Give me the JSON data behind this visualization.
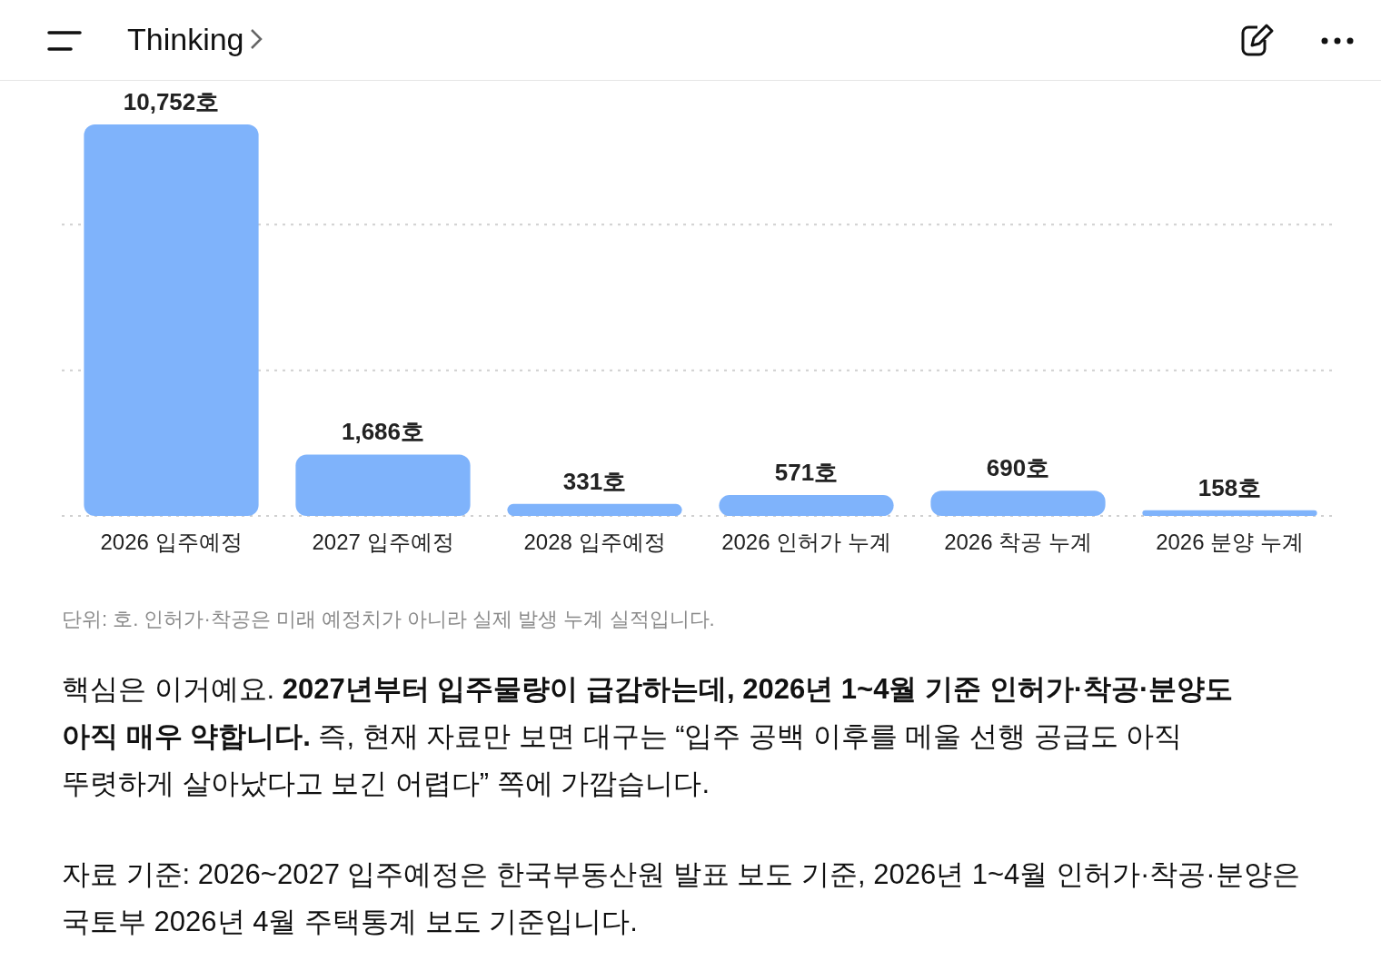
{
  "chart_data": {
    "type": "bar",
    "categories": [
      "2026 입주예정",
      "2027 입주예정",
      "2028 입주예정",
      "2026 인허가 누계",
      "2026 착공 누계",
      "2026 분양 누계"
    ],
    "values": [
      10752,
      1686,
      331,
      571,
      690,
      158
    ],
    "value_labels": [
      "10,752호",
      "1,686호",
      "331호",
      "571호",
      "690호",
      "158호"
    ],
    "color": "#7fb3fb",
    "ylim": [
      0,
      10752
    ],
    "ref_lines": [
      {
        "axis": "y",
        "value": 0,
        "color": "#d0d0d0",
        "line_style": "dotted"
      },
      {
        "axis": "y",
        "value": 4000,
        "color": "#d0d0d0",
        "line_style": "dotted"
      },
      {
        "axis": "y",
        "value": 8000,
        "color": "#d0d0d0",
        "line_style": "dotted"
      }
    ],
    "tick_labels": "x",
    "annotations": [
      "Thinking",
      "단위: 호. 인허가·착공은 미래 예정치가 아니라 실제 발생 누계 실적입니다.",
      "핵심은 이거예요. ",
      "2027년부터 입주물량이 급감하는데, 2026년 1~4월 기준 인허가·착공·분양도 아직 매우 약합니다.",
      " 즉, 현재 자료만 보면 대구는 “입주 공백 이후를 메울 선행 공급도 아직 뚜렷하게 살아났다고 보긴 어렵다” 쪽에 가깝습니다.",
      "자료 기준: 2026~2027 입주예정은 한국부동산원 발표 보도 기준, 2026년 1~4월 인허가·착공·분양은 국토부 2026년 4월 주택통계 보도 기준입니다."
    ]
  }
}
